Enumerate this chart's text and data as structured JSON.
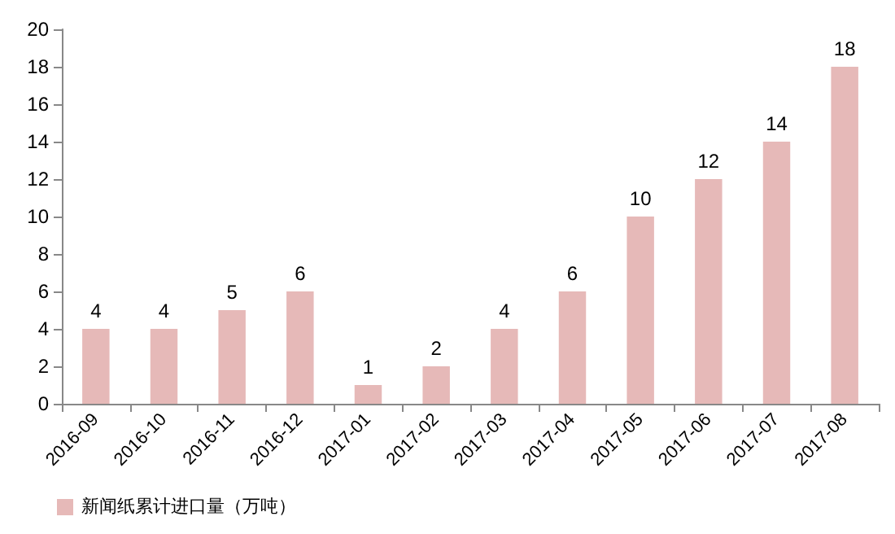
{
  "chart_data": {
    "type": "bar",
    "categories": [
      "2016-09",
      "2016-10",
      "2016-11",
      "2016-12",
      "2017-01",
      "2017-02",
      "2017-03",
      "2017-04",
      "2017-05",
      "2017-06",
      "2017-07",
      "2017-08"
    ],
    "series": [
      {
        "name": "新闻纸累计进口量（万吨）",
        "color": "#e6b9b8",
        "values": [
          4,
          4,
          5,
          6,
          1,
          2,
          4,
          6,
          10,
          12,
          14,
          18
        ]
      }
    ],
    "ylim": [
      0,
      20
    ],
    "yticks": [
      0,
      2,
      4,
      6,
      8,
      10,
      12,
      14,
      16,
      18,
      20
    ],
    "grid": false,
    "legend": "bottom left",
    "data_labels": true
  }
}
